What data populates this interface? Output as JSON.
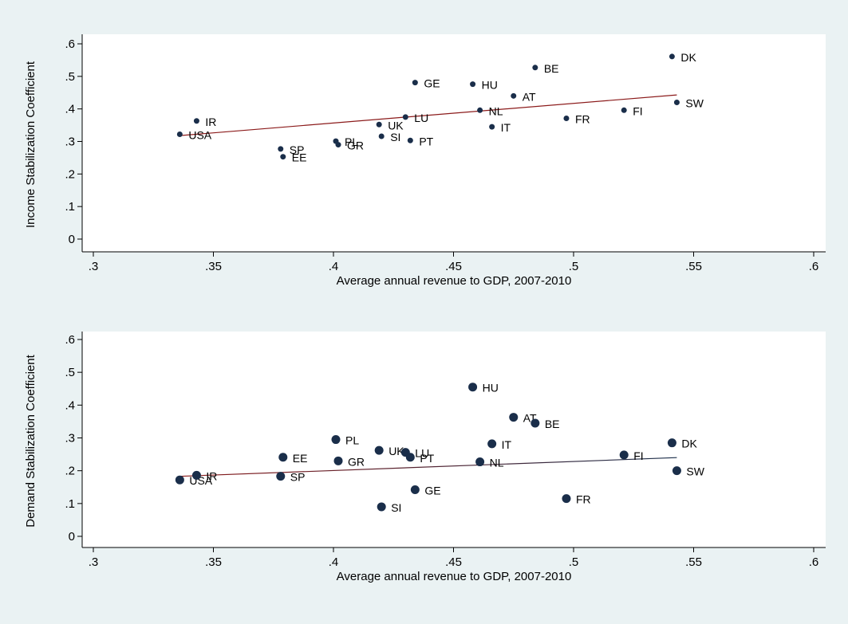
{
  "figure": {
    "background": "#eaf2f3",
    "plot_background": "#ffffff"
  },
  "chart_data": [
    {
      "type": "scatter",
      "id": "income",
      "title": "",
      "xlabel": "Average annual revenue to GDP, 2007-2010",
      "ylabel": "Income Stabilization Coefficient",
      "xlim": [
        0.3,
        0.6
      ],
      "ylim": [
        0,
        0.6
      ],
      "x_ticks": [
        0.3,
        0.35,
        0.4,
        0.45,
        0.5,
        0.55,
        0.6
      ],
      "x_tick_labels": [
        ".3",
        ".35",
        ".4",
        ".45",
        ".5",
        ".55",
        ".6"
      ],
      "y_ticks": [
        0,
        0.1,
        0.2,
        0.3,
        0.4,
        0.5,
        0.6
      ],
      "y_tick_labels": [
        "0",
        ".1",
        ".2",
        ".3",
        ".4",
        ".5",
        ".6"
      ],
      "grid": false,
      "marker_color": "#1a2e4a",
      "marker_size": "small",
      "fit_line": {
        "x": [
          0.336,
          0.543
        ],
        "y": [
          0.318,
          0.443
        ],
        "color": "#8b1a1a"
      },
      "points": [
        {
          "label": "USA",
          "x": 0.336,
          "y": 0.322
        },
        {
          "label": "IR",
          "x": 0.343,
          "y": 0.363
        },
        {
          "label": "SP",
          "x": 0.378,
          "y": 0.277
        },
        {
          "label": "EE",
          "x": 0.379,
          "y": 0.253
        },
        {
          "label": "PL",
          "x": 0.401,
          "y": 0.301
        },
        {
          "label": "GR",
          "x": 0.402,
          "y": 0.29
        },
        {
          "label": "UK",
          "x": 0.419,
          "y": 0.352
        },
        {
          "label": "SI",
          "x": 0.42,
          "y": 0.316
        },
        {
          "label": "LU",
          "x": 0.43,
          "y": 0.375
        },
        {
          "label": "PT",
          "x": 0.432,
          "y": 0.303
        },
        {
          "label": "GE",
          "x": 0.434,
          "y": 0.481
        },
        {
          "label": "HU",
          "x": 0.458,
          "y": 0.476
        },
        {
          "label": "NL",
          "x": 0.461,
          "y": 0.396
        },
        {
          "label": "IT",
          "x": 0.466,
          "y": 0.345
        },
        {
          "label": "AT",
          "x": 0.475,
          "y": 0.44
        },
        {
          "label": "BE",
          "x": 0.484,
          "y": 0.527
        },
        {
          "label": "FR",
          "x": 0.497,
          "y": 0.371
        },
        {
          "label": "FI",
          "x": 0.521,
          "y": 0.396
        },
        {
          "label": "DK",
          "x": 0.541,
          "y": 0.561
        },
        {
          "label": "SW",
          "x": 0.543,
          "y": 0.42
        }
      ]
    },
    {
      "type": "scatter",
      "id": "demand",
      "title": "",
      "xlabel": "Average annual revenue to GDP, 2007-2010",
      "ylabel": "Demand Stabilization Coefficient",
      "xlim": [
        0.3,
        0.6
      ],
      "ylim": [
        0,
        0.6
      ],
      "x_ticks": [
        0.3,
        0.35,
        0.4,
        0.45,
        0.5,
        0.55,
        0.6
      ],
      "x_tick_labels": [
        ".3",
        ".35",
        ".4",
        ".45",
        ".5",
        ".55",
        ".6"
      ],
      "y_ticks": [
        0,
        0.1,
        0.2,
        0.3,
        0.4,
        0.5,
        0.6
      ],
      "y_tick_labels": [
        "0",
        ".1",
        ".2",
        ".3",
        ".4",
        ".5",
        ".6"
      ],
      "grid": false,
      "marker_color": "#1a2e4a",
      "marker_size": "large",
      "fit_line": {
        "x": [
          0.336,
          0.543
        ],
        "y": [
          0.183,
          0.24
        ],
        "color": "#8b1a1a",
        "color_end": "#1a2e4a"
      },
      "points": [
        {
          "label": "USA",
          "x": 0.336,
          "y": 0.172
        },
        {
          "label": "IR",
          "x": 0.343,
          "y": 0.186
        },
        {
          "label": "SP",
          "x": 0.378,
          "y": 0.183
        },
        {
          "label": "EE",
          "x": 0.379,
          "y": 0.241
        },
        {
          "label": "PL",
          "x": 0.401,
          "y": 0.295
        },
        {
          "label": "GR",
          "x": 0.402,
          "y": 0.23
        },
        {
          "label": "UK",
          "x": 0.419,
          "y": 0.262
        },
        {
          "label": "SI",
          "x": 0.42,
          "y": 0.09
        },
        {
          "label": "LU",
          "x": 0.43,
          "y": 0.256
        },
        {
          "label": "PT",
          "x": 0.432,
          "y": 0.241
        },
        {
          "label": "GE",
          "x": 0.434,
          "y": 0.142
        },
        {
          "label": "HU",
          "x": 0.458,
          "y": 0.455
        },
        {
          "label": "NL",
          "x": 0.461,
          "y": 0.227
        },
        {
          "label": "IT",
          "x": 0.466,
          "y": 0.282
        },
        {
          "label": "AT",
          "x": 0.475,
          "y": 0.363
        },
        {
          "label": "BE",
          "x": 0.484,
          "y": 0.345
        },
        {
          "label": "FR",
          "x": 0.497,
          "y": 0.115
        },
        {
          "label": "FI",
          "x": 0.521,
          "y": 0.248
        },
        {
          "label": "DK",
          "x": 0.541,
          "y": 0.285
        },
        {
          "label": "SW",
          "x": 0.543,
          "y": 0.2
        }
      ]
    }
  ]
}
